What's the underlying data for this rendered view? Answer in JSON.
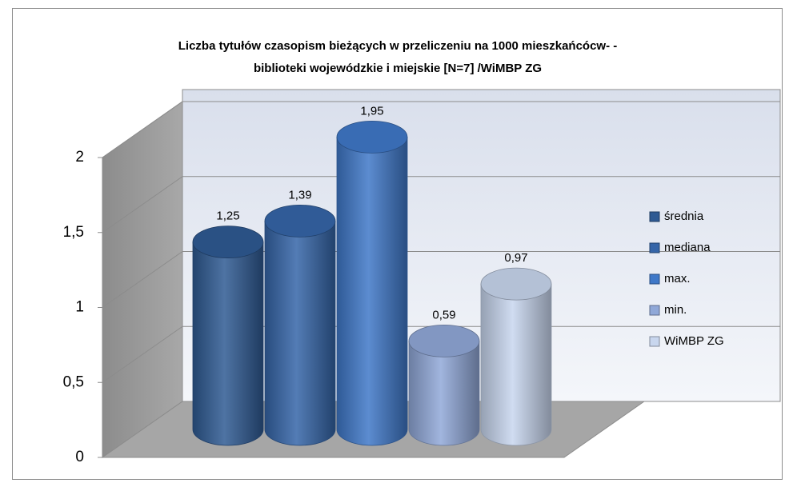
{
  "chart_data": {
    "type": "bar3d",
    "title": [
      "Liczba tytułów czasopism bieżących w przeliczeniu na 1000 mieszkańcócw- -",
      "biblioteki wojewódzkie i miejskie  [N=7] /WiMBP  ZG"
    ],
    "series": [
      {
        "name": "średnia",
        "color": "#2f5a93",
        "values": [
          1.25
        ],
        "value_labels": [
          "1,25"
        ]
      },
      {
        "name": "mediana",
        "color": "#3565a8",
        "values": [
          1.39
        ],
        "value_labels": [
          "1,39"
        ]
      },
      {
        "name": "max.",
        "color": "#3f78c8",
        "values": [
          1.95
        ],
        "value_labels": [
          "1,95"
        ]
      },
      {
        "name": "min.",
        "color": "#90a8d8",
        "values": [
          0.59
        ],
        "value_labels": [
          "0,59"
        ]
      },
      {
        "name": "WiMBP ZG",
        "color": "#c8d6ee",
        "values": [
          0.97
        ],
        "value_labels": [
          "0,97"
        ]
      }
    ],
    "ylim": [
      0,
      2
    ],
    "yticks": [
      0,
      {
        "value": 0.5,
        "label": "0,5"
      },
      1,
      {
        "value": 1.5,
        "label": "1,5"
      },
      2
    ],
    "grid": true,
    "legend": "right"
  }
}
